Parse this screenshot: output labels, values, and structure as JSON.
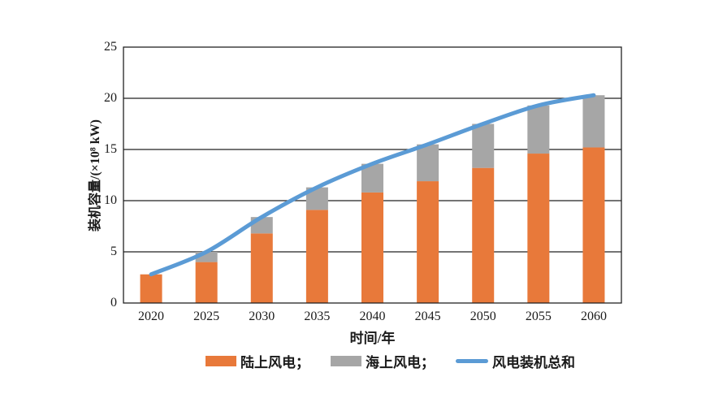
{
  "chart_data": {
    "type": "bar",
    "stacked": true,
    "title": "",
    "xlabel": "时间/年",
    "ylabel": "装机容量/(×10⁸ kW)",
    "categories": [
      "2020",
      "2025",
      "2030",
      "2035",
      "2040",
      "2045",
      "2050",
      "2055",
      "2060"
    ],
    "series": [
      {
        "name": "陆上风电",
        "type": "bar",
        "color": "#E8793A",
        "values": [
          2.8,
          4.0,
          6.8,
          9.1,
          10.8,
          11.9,
          13.2,
          14.6,
          15.2
        ]
      },
      {
        "name": "海上风电",
        "type": "bar",
        "color": "#A6A6A6",
        "values": [
          0.0,
          1.0,
          1.6,
          2.2,
          2.8,
          3.6,
          4.3,
          4.7,
          5.1
        ]
      },
      {
        "name": "风电装机总和",
        "type": "line",
        "color": "#5B9BD5",
        "values": [
          2.8,
          5.0,
          8.4,
          11.3,
          13.6,
          15.5,
          17.5,
          19.3,
          20.3
        ]
      }
    ],
    "legend": [
      "陆上风电；",
      "海上风电；",
      "风电装机总和"
    ],
    "ylim": [
      0,
      25
    ],
    "yticks": [
      0,
      5,
      10,
      15,
      20,
      25
    ],
    "grid": true,
    "grid_color": "#222222",
    "frame_color": "#222222",
    "legend_position": "bottom"
  }
}
